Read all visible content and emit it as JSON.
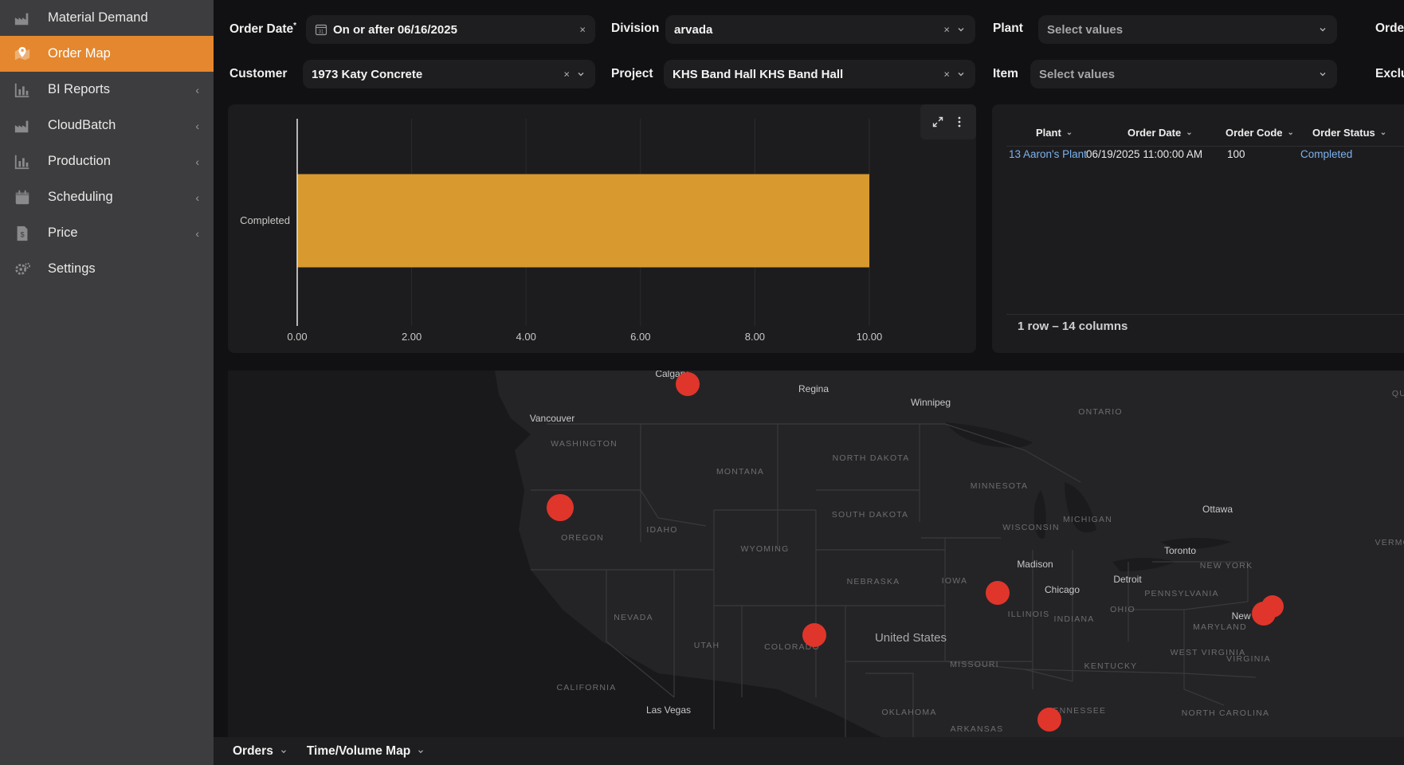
{
  "sidebar": {
    "items": [
      {
        "label": "Material Demand",
        "icon": "factory-icon",
        "active": false,
        "expandable": false
      },
      {
        "label": "Order Map",
        "icon": "map-pin-icon",
        "active": true,
        "expandable": false
      },
      {
        "label": "BI Reports",
        "icon": "bar-chart-icon",
        "active": false,
        "expandable": true
      },
      {
        "label": "CloudBatch",
        "icon": "factory-icon",
        "active": false,
        "expandable": true
      },
      {
        "label": "Production",
        "icon": "bar-chart-icon",
        "active": false,
        "expandable": true
      },
      {
        "label": "Scheduling",
        "icon": "calendar-icon",
        "active": false,
        "expandable": true
      },
      {
        "label": "Price",
        "icon": "price-tag-icon",
        "active": false,
        "expandable": true
      },
      {
        "label": "Settings",
        "icon": "gear-icon",
        "active": false,
        "expandable": false
      }
    ],
    "chevron": "‹"
  },
  "filters": {
    "order_date": {
      "label": "Order Date",
      "required_mark": "*",
      "value": "On or after 06/16/2025"
    },
    "division": {
      "label": "Division",
      "value": "arvada"
    },
    "plant": {
      "label": "Plant",
      "placeholder": "Select values"
    },
    "order_truncated": {
      "label": "Orde"
    },
    "customer": {
      "label": "Customer",
      "value": "1973 Katy Concrete"
    },
    "project": {
      "label": "Project",
      "value": "KHS Band Hall KHS Band Hall"
    },
    "item": {
      "label": "Item",
      "placeholder": "Select values"
    },
    "exclude_truncated": {
      "label": "Exclu"
    },
    "clear_glyph": "×"
  },
  "chart_data": {
    "type": "bar",
    "orientation": "horizontal",
    "categories": [
      "Completed"
    ],
    "values": [
      10
    ],
    "xlim": [
      0,
      10
    ],
    "xticks": [
      "0.00",
      "2.00",
      "4.00",
      "6.00",
      "8.00",
      "10.00"
    ],
    "bar_color": "#d89a2e",
    "grid": true
  },
  "table": {
    "columns": [
      "Plant",
      "Order Date",
      "Order Code",
      "Order Status"
    ],
    "rows": [
      {
        "plant": "13 Aaron's Plant",
        "order_date": "06/19/2025 11:00:00 AM",
        "order_code": "100",
        "order_status": "Completed"
      }
    ],
    "footer": "1 row – 14 columns"
  },
  "map": {
    "labels": {
      "cities": [
        "Calgary",
        "Regina",
        "Winnipeg",
        "Vancouver",
        "Ottawa",
        "Toronto",
        "Madison",
        "Chicago",
        "Detroit",
        "Las Vegas"
      ],
      "regions": [
        "ONTARIO",
        "WASHINGTON",
        "MONTANA",
        "NORTH DAKOTA",
        "MINNESOTA",
        "MICHIGAN",
        "WISCONSIN",
        "SOUTH DAKOTA",
        "IDAHO",
        "OREGON",
        "WYOMING",
        "NEBRASKA",
        "IOWA",
        "NEW YORK",
        "PENNSYLVANIA",
        "OHIO",
        "INDIANA",
        "ILLINOIS",
        "NEVADA",
        "UTAH",
        "COLORADO",
        "MARYLAND",
        "WEST VIRGINIA",
        "VIRGINIA",
        "KENTUCKY",
        "MISSOURI",
        "CALIFORNIA",
        "OKLAHOMA",
        "TENNESSEE",
        "ARKANSAS",
        "NORTH CAROLINA",
        "VERMONT",
        "QU"
      ],
      "country": "United States",
      "new_york_city": "New York"
    },
    "marker_color": "#e0352b",
    "marker_count": 8
  },
  "bottom_bar": {
    "tabs": [
      {
        "label": "Orders"
      },
      {
        "label": "Time/Volume Map"
      }
    ]
  }
}
